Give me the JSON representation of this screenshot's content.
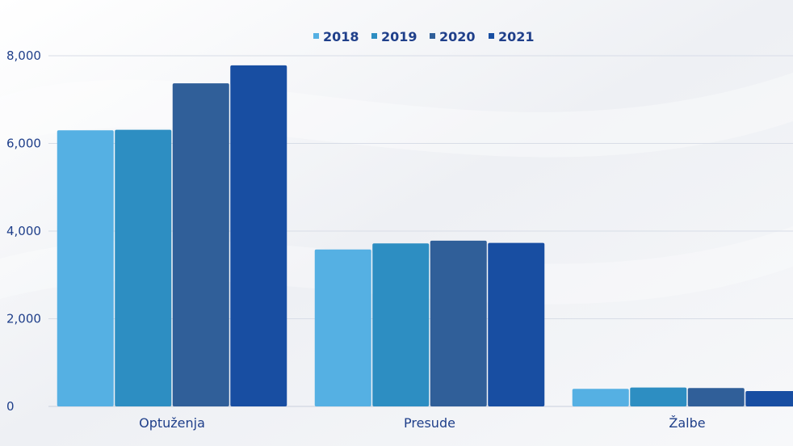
{
  "chart_data": {
    "type": "bar",
    "categories": [
      "Optuženja",
      "Presude",
      "Žalbe"
    ],
    "series": [
      {
        "name": "2018",
        "color": "#55b0e3",
        "values": [
          6300,
          3580,
          400
        ]
      },
      {
        "name": "2019",
        "color": "#2d8ec2",
        "values": [
          6310,
          3720,
          430
        ]
      },
      {
        "name": "2020",
        "color": "#305f99",
        "values": [
          7370,
          3780,
          420
        ]
      },
      {
        "name": "2021",
        "color": "#184ea2",
        "values": [
          7780,
          3730,
          350
        ]
      }
    ],
    "ylim": [
      0,
      8000
    ],
    "yticks": [
      0,
      2000,
      4000,
      6000,
      8000
    ],
    "ytick_labels": [
      "0",
      "2,000",
      "4,000",
      "6,000",
      "8,000"
    ],
    "grid": true,
    "legend_position": "top-center"
  }
}
